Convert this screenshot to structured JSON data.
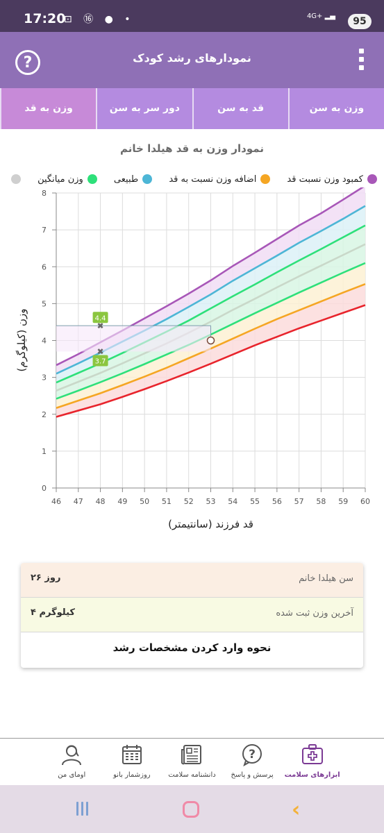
{
  "status_bar": {
    "time": "17:20",
    "left_icons": "⊡ ⑯ ● •",
    "network": "4G+ ▂▄",
    "battery": "95"
  },
  "app_bar": {
    "title": "نمودارهای رشد کودک",
    "help_icon": "?",
    "menu_icon": "more-vert-icon"
  },
  "tabs": [
    {
      "label": "وزن به سن",
      "active": false
    },
    {
      "label": "قد به سن",
      "active": false
    },
    {
      "label": "دور سر به سن",
      "active": false
    },
    {
      "label": "وزن به قد",
      "active": true
    }
  ],
  "chart_title": "نمودار وزن به قد هیلدا خانم",
  "legend": [
    {
      "label": "کمبود وزن نسبت قد",
      "color": "#a857b8"
    },
    {
      "label": "اضافه وزن نسبت به قد",
      "color": "#f5a623"
    },
    {
      "label": "طبیعی",
      "color": "#4db6d6"
    },
    {
      "label": "وزن میانگین",
      "color": "#2ee07a"
    },
    {
      "label": "",
      "color": "#cfcfcf"
    }
  ],
  "chart_data": {
    "type": "line",
    "xlabel": "قد فرزند (سانتیمتر)",
    "ylabel": "وزن (کیلوگرم)",
    "xlim": [
      46,
      60
    ],
    "ylim": [
      0,
      8
    ],
    "x": [
      46,
      47,
      48,
      49,
      50,
      51,
      52,
      53,
      54,
      55,
      56,
      57,
      58,
      59,
      60
    ],
    "y_ticks": [
      0,
      1,
      2,
      3,
      4,
      5,
      6,
      7,
      8
    ],
    "series": [
      {
        "color": "#a857b8",
        "values": [
          3.33,
          3.63,
          3.95,
          4.27,
          4.6,
          4.93,
          5.27,
          5.63,
          6.02,
          6.38,
          6.75,
          7.12,
          7.45,
          7.82,
          8.2
        ]
      },
      {
        "color": "#4db6d6",
        "values": [
          3.1,
          3.38,
          3.67,
          3.97,
          4.27,
          4.58,
          4.91,
          5.25,
          5.62,
          5.96,
          6.3,
          6.65,
          6.97,
          7.3,
          7.65
        ]
      },
      {
        "color": "#2ee07a",
        "values": [
          2.86,
          3.12,
          3.38,
          3.66,
          3.95,
          4.24,
          4.54,
          4.87,
          5.2,
          5.52,
          5.85,
          6.17,
          6.48,
          6.8,
          7.12
        ]
      },
      {
        "color": "#c9d8c9",
        "values": [
          2.64,
          2.88,
          3.12,
          3.38,
          3.65,
          3.92,
          4.21,
          4.51,
          4.83,
          5.13,
          5.44,
          5.74,
          6.03,
          6.32,
          6.61
        ]
      },
      {
        "color": "#2ee07a",
        "values": [
          2.42,
          2.64,
          2.87,
          3.11,
          3.36,
          3.62,
          3.88,
          4.16,
          4.45,
          4.74,
          5.02,
          5.3,
          5.57,
          5.84,
          6.1
        ]
      },
      {
        "color": "#f5a623",
        "values": [
          2.17,
          2.37,
          2.57,
          2.79,
          3.02,
          3.26,
          3.52,
          3.78,
          4.05,
          4.32,
          4.58,
          4.82,
          5.06,
          5.3,
          5.53
        ]
      },
      {
        "color": "#e8242c",
        "values": [
          1.93,
          2.1,
          2.27,
          2.47,
          2.68,
          2.9,
          3.13,
          3.37,
          3.62,
          3.87,
          4.1,
          4.33,
          4.54,
          4.75,
          4.96
        ]
      }
    ],
    "markers": [
      {
        "x": 48,
        "y": 4.4,
        "label": "4.4"
      },
      {
        "x": 48,
        "y": 3.7,
        "label": "3.7"
      }
    ],
    "measurement": {
      "x": 53,
      "y": 4.0
    },
    "guide_line": {
      "y": 4.4,
      "x_end": 53
    }
  },
  "info": {
    "age_label": "سن هیلدا خانم",
    "age_value": "۲۶ روز",
    "weight_label": "آخرین وزن ثبت شده",
    "weight_value": "۴ کیلوگرم",
    "howto_link": "نحوه وارد کردن مشخصات رشد"
  },
  "bottom_nav": [
    {
      "label": "ابزارهای سلامت",
      "icon": "medical-kit-icon",
      "active": true
    },
    {
      "label": "پرسش و پاسخ",
      "icon": "question-bubble-icon",
      "active": false
    },
    {
      "label": "دانشنامه سلامت",
      "icon": "newspaper-icon",
      "active": false
    },
    {
      "label": "روزشمار بانو",
      "icon": "calendar-icon",
      "active": false
    },
    {
      "label": "اومای من",
      "icon": "profile-icon",
      "active": false
    }
  ]
}
